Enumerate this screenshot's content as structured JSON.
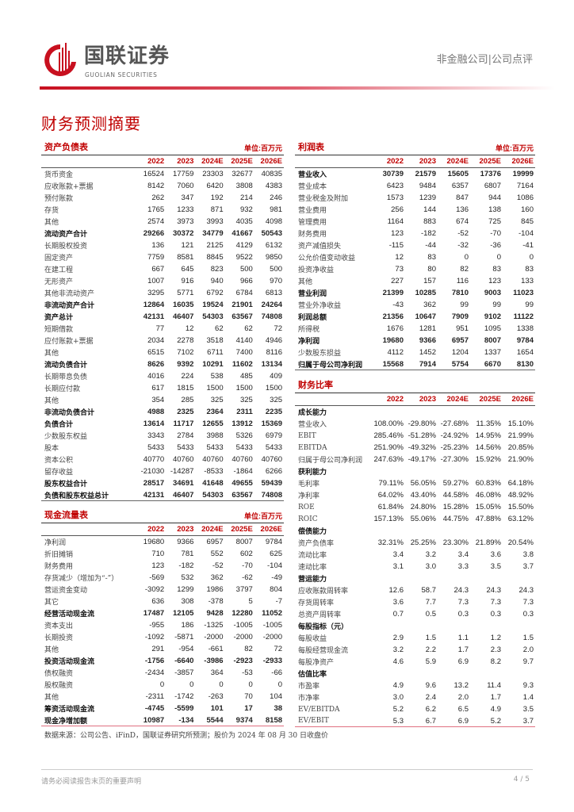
{
  "header": {
    "brand_cn": "国联证券",
    "brand_en": "GUOLIAN SECURITIES",
    "category": "非金融公司|公司点评",
    "accent": "#c00000"
  },
  "page_title": "财务预测摘要",
  "years": [
    "2022",
    "2023",
    "2024E",
    "2025E",
    "2026E"
  ],
  "balance_sheet": {
    "title": "资产负债表",
    "unit": "单位:百万元",
    "rows": [
      {
        "l": "货币资金",
        "v": [
          "16524",
          "17759",
          "23303",
          "32677",
          "40835"
        ]
      },
      {
        "l": "应收账款+票据",
        "v": [
          "8142",
          "7060",
          "6420",
          "3808",
          "4383"
        ]
      },
      {
        "l": "预付账款",
        "v": [
          "262",
          "347",
          "192",
          "214",
          "246"
        ]
      },
      {
        "l": "存货",
        "v": [
          "1765",
          "1233",
          "871",
          "932",
          "981"
        ]
      },
      {
        "l": "其他",
        "v": [
          "2574",
          "3973",
          "3993",
          "4035",
          "4098"
        ]
      },
      {
        "l": "流动资产合计",
        "v": [
          "29266",
          "30372",
          "34779",
          "41667",
          "50543"
        ],
        "b": true
      },
      {
        "l": "长期股权投资",
        "v": [
          "136",
          "121",
          "2125",
          "4129",
          "6132"
        ]
      },
      {
        "l": "固定资产",
        "v": [
          "7759",
          "8581",
          "8845",
          "9522",
          "9850"
        ]
      },
      {
        "l": "在建工程",
        "v": [
          "667",
          "645",
          "823",
          "500",
          "500"
        ]
      },
      {
        "l": "无形资产",
        "v": [
          "1007",
          "916",
          "940",
          "966",
          "970"
        ]
      },
      {
        "l": "其他非流动资产",
        "v": [
          "3295",
          "5771",
          "6792",
          "6784",
          "6813"
        ]
      },
      {
        "l": "非流动资产合计",
        "v": [
          "12864",
          "16035",
          "19524",
          "21901",
          "24264"
        ],
        "b": true
      },
      {
        "l": "资产总计",
        "v": [
          "42131",
          "46407",
          "54303",
          "63567",
          "74808"
        ],
        "b": true
      },
      {
        "l": "短期借款",
        "v": [
          "77",
          "12",
          "62",
          "62",
          "72"
        ]
      },
      {
        "l": "应付账款+票据",
        "v": [
          "2034",
          "2278",
          "3518",
          "4140",
          "4946"
        ]
      },
      {
        "l": "其他",
        "v": [
          "6515",
          "7102",
          "6711",
          "7400",
          "8116"
        ]
      },
      {
        "l": "流动负债合计",
        "v": [
          "8626",
          "9392",
          "10291",
          "11602",
          "13134"
        ],
        "b": true
      },
      {
        "l": "长期带息负债",
        "v": [
          "4016",
          "224",
          "538",
          "485",
          "409"
        ]
      },
      {
        "l": "长期应付款",
        "v": [
          "617",
          "1815",
          "1500",
          "1500",
          "1500"
        ]
      },
      {
        "l": "其他",
        "v": [
          "354",
          "285",
          "325",
          "325",
          "325"
        ]
      },
      {
        "l": "非流动负债合计",
        "v": [
          "4988",
          "2325",
          "2364",
          "2311",
          "2235"
        ],
        "b": true
      },
      {
        "l": "负债合计",
        "v": [
          "13614",
          "11717",
          "12655",
          "13912",
          "15369"
        ],
        "b": true
      },
      {
        "l": "少数股东权益",
        "v": [
          "3343",
          "2784",
          "3988",
          "5326",
          "6979"
        ]
      },
      {
        "l": "股本",
        "v": [
          "5433",
          "5433",
          "5433",
          "5433",
          "5433"
        ]
      },
      {
        "l": "资本公积",
        "v": [
          "40770",
          "40760",
          "40760",
          "40760",
          "40760"
        ]
      },
      {
        "l": "留存收益",
        "v": [
          "-21030",
          "-14287",
          "-8533",
          "-1864",
          "6266"
        ]
      },
      {
        "l": "股东权益合计",
        "v": [
          "28517",
          "34691",
          "41648",
          "49655",
          "59439"
        ],
        "b": true
      },
      {
        "l": "负债和股东权益总计",
        "v": [
          "42131",
          "46407",
          "54303",
          "63567",
          "74808"
        ],
        "b": true
      }
    ]
  },
  "cash_flow": {
    "title": "现金流量表",
    "unit": "单位:百万元",
    "rows": [
      {
        "l": "净利润",
        "v": [
          "19680",
          "9366",
          "6957",
          "8007",
          "9784"
        ]
      },
      {
        "l": "折旧摊销",
        "v": [
          "710",
          "781",
          "552",
          "602",
          "625"
        ]
      },
      {
        "l": "财务费用",
        "v": [
          "123",
          "-182",
          "-52",
          "-70",
          "-104"
        ]
      },
      {
        "l": "存货减少（增加为“-”）",
        "v": [
          "-569",
          "532",
          "362",
          "-62",
          "-49"
        ]
      },
      {
        "l": "营运资金变动",
        "v": [
          "-3092",
          "1299",
          "1986",
          "3797",
          "804"
        ]
      },
      {
        "l": "其它",
        "v": [
          "636",
          "308",
          "-378",
          "5",
          "-7"
        ]
      },
      {
        "l": "经营活动现金流",
        "v": [
          "17487",
          "12105",
          "9428",
          "12280",
          "11052"
        ],
        "b": true
      },
      {
        "l": "资本支出",
        "v": [
          "-955",
          "186",
          "-1325",
          "-1005",
          "-1005"
        ]
      },
      {
        "l": "长期投资",
        "v": [
          "-1092",
          "-5871",
          "-2000",
          "-2000",
          "-2000"
        ]
      },
      {
        "l": "其他",
        "v": [
          "291",
          "-954",
          "-661",
          "82",
          "72"
        ]
      },
      {
        "l": "投资活动现金流",
        "v": [
          "-1756",
          "-6640",
          "-3986",
          "-2923",
          "-2933"
        ],
        "b": true
      },
      {
        "l": "债权融资",
        "v": [
          "-2434",
          "-3857",
          "364",
          "-53",
          "-66"
        ]
      },
      {
        "l": "股权融资",
        "v": [
          "0",
          "0",
          "0",
          "0",
          "0"
        ]
      },
      {
        "l": "其他",
        "v": [
          "-2311",
          "-1742",
          "-263",
          "70",
          "104"
        ]
      },
      {
        "l": "筹资活动现金流",
        "v": [
          "-4745",
          "-5599",
          "101",
          "17",
          "38"
        ],
        "b": true
      },
      {
        "l": "现金净增加额",
        "v": [
          "10987",
          "-134",
          "5544",
          "9374",
          "8158"
        ],
        "b": true
      }
    ]
  },
  "income": {
    "title": "利润表",
    "unit": "单位:百万元",
    "rows": [
      {
        "l": "营业收入",
        "v": [
          "30739",
          "21579",
          "15605",
          "17376",
          "19999"
        ],
        "b": true
      },
      {
        "l": "营业成本",
        "v": [
          "6423",
          "9484",
          "6357",
          "6807",
          "7164"
        ]
      },
      {
        "l": "营业税金及附加",
        "v": [
          "1573",
          "1239",
          "847",
          "944",
          "1086"
        ]
      },
      {
        "l": "营业费用",
        "v": [
          "256",
          "144",
          "136",
          "138",
          "160"
        ]
      },
      {
        "l": "管理费用",
        "v": [
          "1164",
          "883",
          "674",
          "725",
          "845"
        ]
      },
      {
        "l": "财务费用",
        "v": [
          "123",
          "-182",
          "-52",
          "-70",
          "-104"
        ]
      },
      {
        "l": "资产减值损失",
        "v": [
          "-115",
          "-44",
          "-32",
          "-36",
          "-41"
        ]
      },
      {
        "l": "公允价值变动收益",
        "v": [
          "12",
          "83",
          "0",
          "0",
          "0"
        ]
      },
      {
        "l": "投资净收益",
        "v": [
          "73",
          "80",
          "82",
          "83",
          "83"
        ]
      },
      {
        "l": "其他",
        "v": [
          "227",
          "157",
          "116",
          "123",
          "133"
        ]
      },
      {
        "l": "营业利润",
        "v": [
          "21399",
          "10285",
          "7810",
          "9003",
          "11023"
        ],
        "b": true
      },
      {
        "l": "营业外净收益",
        "v": [
          "-43",
          "362",
          "99",
          "99",
          "99"
        ]
      },
      {
        "l": "利润总额",
        "v": [
          "21356",
          "10647",
          "7909",
          "9102",
          "11122"
        ],
        "b": true
      },
      {
        "l": "所得税",
        "v": [
          "1676",
          "1281",
          "951",
          "1095",
          "1338"
        ]
      },
      {
        "l": "净利润",
        "v": [
          "19680",
          "9366",
          "6957",
          "8007",
          "9784"
        ],
        "b": true
      },
      {
        "l": "少数股东损益",
        "v": [
          "4112",
          "1452",
          "1204",
          "1337",
          "1654"
        ]
      },
      {
        "l": "归属于母公司净利润",
        "v": [
          "15568",
          "7914",
          "5754",
          "6670",
          "8130"
        ],
        "b": true
      }
    ]
  },
  "ratios": {
    "title": "财务比率",
    "rows": [
      {
        "l": "成长能力",
        "v": [
          "",
          "",
          "",
          "",
          ""
        ],
        "s": true
      },
      {
        "l": "营业收入",
        "v": [
          "108.00%",
          "-29.80%",
          "-27.68%",
          "11.35%",
          "15.10%"
        ]
      },
      {
        "l": "EBIT",
        "v": [
          "285.46%",
          "-51.28%",
          "-24.92%",
          "14.95%",
          "21.99%"
        ]
      },
      {
        "l": "EBITDA",
        "v": [
          "251.90%",
          "-49.32%",
          "-25.23%",
          "14.56%",
          "20.85%"
        ]
      },
      {
        "l": "归属于母公司净利润",
        "v": [
          "247.63%",
          "-49.17%",
          "-27.30%",
          "15.92%",
          "21.90%"
        ]
      },
      {
        "l": "获利能力",
        "v": [
          "",
          "",
          "",
          "",
          ""
        ],
        "s": true
      },
      {
        "l": "毛利率",
        "v": [
          "79.11%",
          "56.05%",
          "59.27%",
          "60.83%",
          "64.18%"
        ]
      },
      {
        "l": "净利率",
        "v": [
          "64.02%",
          "43.40%",
          "44.58%",
          "46.08%",
          "48.92%"
        ]
      },
      {
        "l": "ROE",
        "v": [
          "61.84%",
          "24.80%",
          "15.28%",
          "15.05%",
          "15.50%"
        ]
      },
      {
        "l": "ROIC",
        "v": [
          "157.13%",
          "55.06%",
          "44.75%",
          "47.88%",
          "63.12%"
        ]
      },
      {
        "l": "偿债能力",
        "v": [
          "",
          "",
          "",
          "",
          ""
        ],
        "s": true
      },
      {
        "l": "资产负债率",
        "v": [
          "32.31%",
          "25.25%",
          "23.30%",
          "21.89%",
          "20.54%"
        ]
      },
      {
        "l": "流动比率",
        "v": [
          "3.4",
          "3.2",
          "3.4",
          "3.6",
          "3.8"
        ]
      },
      {
        "l": "速动比率",
        "v": [
          "3.1",
          "3.0",
          "3.3",
          "3.5",
          "3.7"
        ]
      },
      {
        "l": "营运能力",
        "v": [
          "",
          "",
          "",
          "",
          ""
        ],
        "s": true
      },
      {
        "l": "应收账款周转率",
        "v": [
          "12.6",
          "58.7",
          "24.3",
          "24.3",
          "24.3"
        ]
      },
      {
        "l": "存货周转率",
        "v": [
          "3.6",
          "7.7",
          "7.3",
          "7.3",
          "7.3"
        ]
      },
      {
        "l": "总资产周转率",
        "v": [
          "0.7",
          "0.5",
          "0.3",
          "0.3",
          "0.3"
        ]
      },
      {
        "l": "每股指标（元）",
        "v": [
          "",
          "",
          "",
          "",
          ""
        ],
        "s": true
      },
      {
        "l": "每股收益",
        "v": [
          "2.9",
          "1.5",
          "1.1",
          "1.2",
          "1.5"
        ]
      },
      {
        "l": "每股经营现金流",
        "v": [
          "3.2",
          "2.2",
          "1.7",
          "2.3",
          "2.0"
        ]
      },
      {
        "l": "每股净资产",
        "v": [
          "4.6",
          "5.9",
          "6.9",
          "8.2",
          "9.7"
        ]
      },
      {
        "l": "估值比率",
        "v": [
          "",
          "",
          "",
          "",
          ""
        ],
        "s": true
      },
      {
        "l": "市盈率",
        "v": [
          "4.9",
          "9.6",
          "13.2",
          "11.4",
          "9.3"
        ]
      },
      {
        "l": "市净率",
        "v": [
          "3.0",
          "2.4",
          "2.0",
          "1.7",
          "1.4"
        ]
      },
      {
        "l": "EV/EBITDA",
        "v": [
          "5.2",
          "6.2",
          "6.5",
          "4.9",
          "3.5"
        ]
      },
      {
        "l": "EV/EBIT",
        "v": [
          "5.3",
          "6.7",
          "6.9",
          "5.2",
          "3.7"
        ]
      }
    ]
  },
  "source": "数据来源：公司公告、iFinD，国联证券研究所预测；股价为 2024 年 08 月 30 日收盘价",
  "footer": {
    "disclaimer": "请务必阅读报告末页的重要声明",
    "page": "4 / 5"
  }
}
